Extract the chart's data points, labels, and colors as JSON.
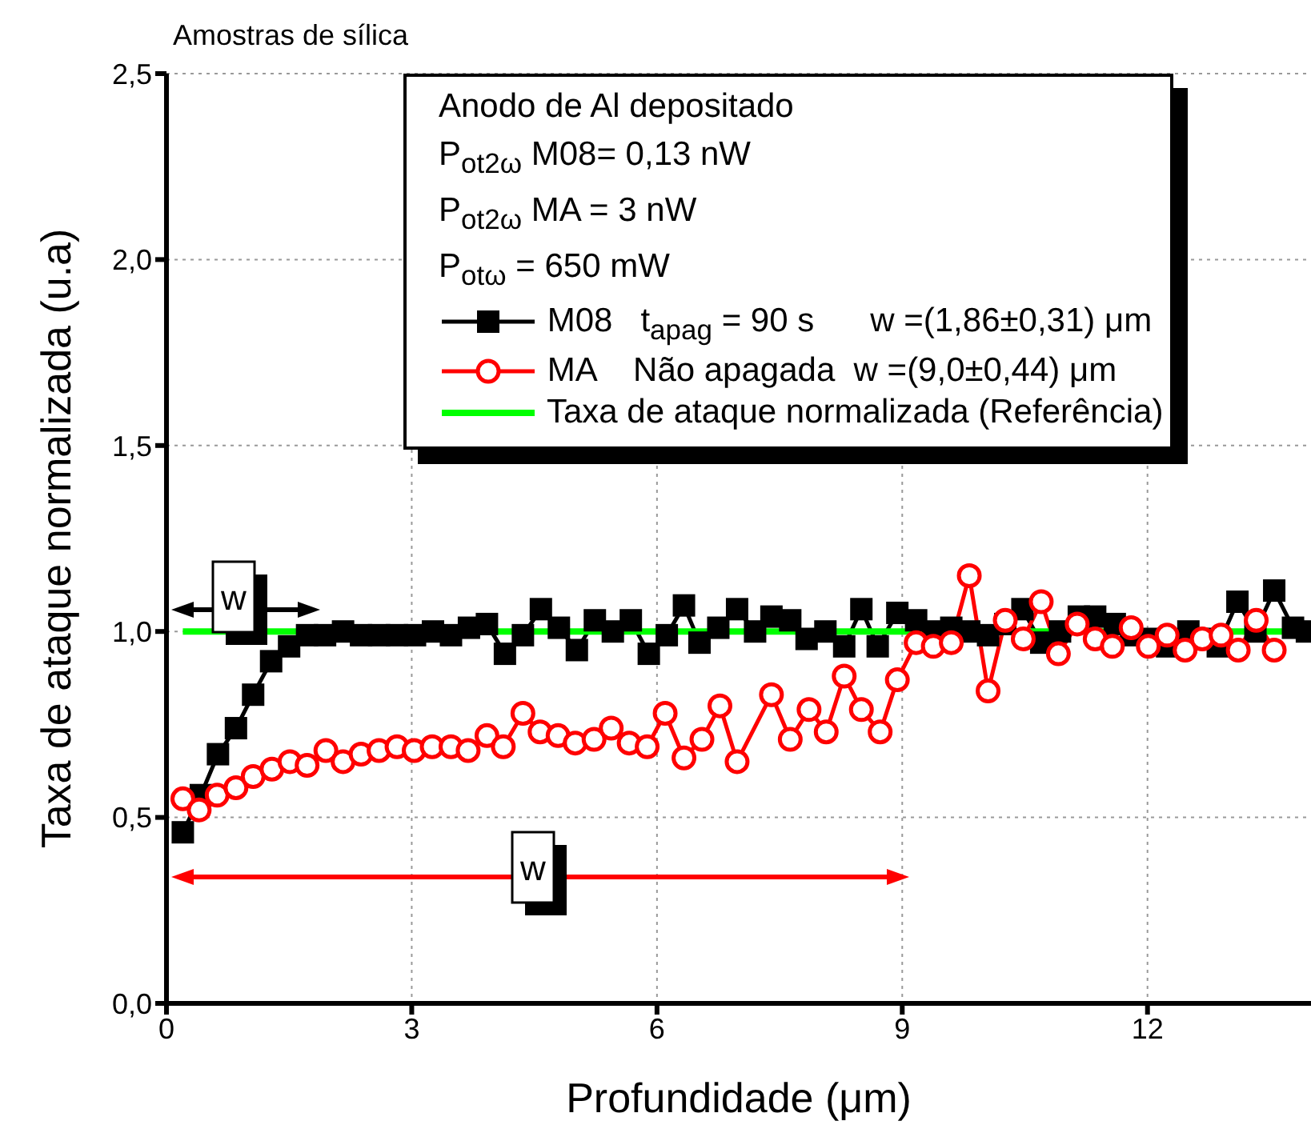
{
  "chart_data": {
    "type": "line",
    "title": "Amostras de sílica",
    "xlabel": "Profundidade (μm)",
    "ylabel": "Taxa de ataque normalizada (u.a)",
    "xlim": [
      0,
      14
    ],
    "xticks": [
      0,
      3,
      6,
      9,
      12
    ],
    "ylim": [
      0,
      2.5
    ],
    "yticks": [
      {
        "value": 0,
        "label": "0,0"
      },
      {
        "value": 0.5,
        "label": "0,5"
      },
      {
        "value": 1,
        "label": "1,0"
      },
      {
        "value": 1.5,
        "label": "1,5"
      },
      {
        "value": 2,
        "label": "2,0"
      },
      {
        "value": 2.5,
        "label": "2,5"
      }
    ],
    "grid": true,
    "legend": "top right",
    "line_style": "solid",
    "annotations": [
      "Anodo de Al depositado",
      "P$_{ot2ω}$ M08= 0,13 nW",
      "P$_{ot2ω}$ MA = 3 nW",
      "P$_{otω}$ = 650 mW",
      "w",
      "w"
    ],
    "series": [
      {
        "name": "M08   t$_{apag}$ = 90 s      w =(1,86±0,31) μm",
        "color": "#000000",
        "marker": "square",
        "x": [
          0.2,
          0.42,
          0.63,
          0.85,
          1.06,
          1.28,
          1.5,
          1.72,
          1.94,
          2.16,
          2.38,
          2.6,
          2.82,
          3.04,
          3.26,
          3.48,
          3.7,
          3.92,
          4.14,
          4.36,
          4.58,
          4.8,
          5.02,
          5.24,
          5.46,
          5.68,
          5.9,
          6.12,
          6.33,
          6.52,
          6.75,
          6.98,
          7.2,
          7.4,
          7.63,
          7.83,
          8.06,
          8.29,
          8.5,
          8.7,
          8.94,
          9.17,
          9.38,
          9.6,
          9.82,
          10.05,
          10.26,
          10.47,
          10.7,
          10.93,
          11.16,
          11.36,
          11.6,
          11.8,
          12.02,
          12.24,
          12.5,
          12.68,
          12.86,
          13.1,
          13.32,
          13.55,
          13.78,
          13.95
        ],
        "values": [
          0.46,
          0.56,
          0.67,
          0.74,
          0.83,
          0.92,
          0.96,
          0.99,
          0.99,
          1.0,
          0.99,
          0.99,
          0.99,
          0.99,
          1.0,
          0.99,
          1.01,
          1.02,
          0.94,
          0.99,
          1.06,
          1.01,
          0.95,
          1.03,
          1.0,
          1.03,
          0.94,
          0.99,
          1.07,
          0.97,
          1.01,
          1.06,
          1.0,
          1.04,
          1.03,
          0.98,
          1.0,
          0.96,
          1.06,
          0.96,
          1.05,
          1.03,
          1.0,
          1.01,
          1.0,
          0.99,
          1.02,
          1.06,
          0.97,
          1.0,
          1.04,
          1.04,
          1.02,
          0.99,
          0.98,
          0.96,
          1.0,
          0.98,
          0.96,
          1.08,
          1.0,
          1.11,
          1.01,
          1.0
        ]
      },
      {
        "name": "MA    Não apagada  w =(9,0±0,44) μm",
        "color": "#ff0000",
        "marker": "circle",
        "x": [
          0.2,
          0.4,
          0.62,
          0.85,
          1.06,
          1.29,
          1.51,
          1.72,
          1.95,
          2.16,
          2.38,
          2.6,
          2.82,
          3.03,
          3.25,
          3.48,
          3.69,
          3.92,
          4.12,
          4.36,
          4.57,
          4.79,
          5.0,
          5.23,
          5.44,
          5.66,
          5.88,
          6.1,
          6.33,
          6.55,
          6.77,
          6.98,
          7.4,
          7.63,
          7.86,
          8.07,
          8.29,
          8.5,
          8.73,
          8.94,
          9.17,
          9.38,
          9.6,
          9.82,
          10.05,
          10.26,
          10.48,
          10.7,
          10.91,
          11.14,
          11.36,
          11.57,
          11.8,
          12.01,
          12.24,
          12.46,
          12.67,
          12.9,
          13.11,
          13.33,
          13.55
        ],
        "values": [
          0.55,
          0.52,
          0.56,
          0.58,
          0.61,
          0.63,
          0.65,
          0.64,
          0.68,
          0.65,
          0.67,
          0.68,
          0.69,
          0.68,
          0.69,
          0.69,
          0.68,
          0.72,
          0.69,
          0.78,
          0.73,
          0.72,
          0.7,
          0.71,
          0.74,
          0.7,
          0.69,
          0.78,
          0.66,
          0.71,
          0.8,
          0.65,
          0.83,
          0.71,
          0.79,
          0.73,
          0.88,
          0.79,
          0.73,
          0.87,
          0.97,
          0.96,
          0.97,
          1.15,
          0.84,
          1.03,
          0.98,
          1.08,
          0.94,
          1.02,
          0.98,
          0.96,
          1.01,
          0.96,
          0.99,
          0.95,
          0.98,
          0.99,
          0.95,
          1.03,
          0.95
        ]
      },
      {
        "name": "Taxa de ataque normalizada (Referência)",
        "color": "#00ff00",
        "x": [
          0.2,
          13.9
        ],
        "values": [
          1,
          1
        ]
      }
    ]
  }
}
